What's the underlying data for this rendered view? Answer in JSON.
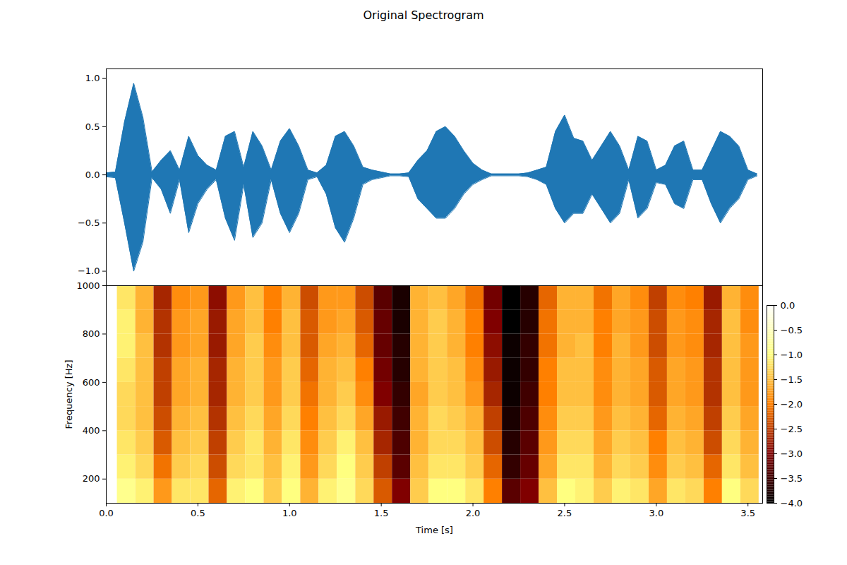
{
  "chart_data": [
    {
      "type": "area",
      "title": "Original Spectrogram",
      "color": "#1f77b4",
      "tick_labels": "y",
      "xlim": [
        0,
        3.58
      ],
      "ylim": [
        -1.15,
        1.1
      ],
      "yticks": [
        {
          "value": -1,
          "label": "−1.0"
        },
        {
          "value": -0.5,
          "label": "−0.5"
        },
        {
          "value": 0,
          "label": "0.0"
        },
        0.5,
        {
          "value": 1,
          "label": "1.0"
        }
      ],
      "x": [
        0.0,
        0.05,
        0.1,
        0.15,
        0.2,
        0.25,
        0.3,
        0.35,
        0.4,
        0.45,
        0.5,
        0.55,
        0.6,
        0.65,
        0.7,
        0.75,
        0.8,
        0.85,
        0.9,
        0.95,
        1.0,
        1.05,
        1.1,
        1.15,
        1.2,
        1.25,
        1.3,
        1.35,
        1.4,
        1.45,
        1.5,
        1.55,
        1.6,
        1.65,
        1.7,
        1.75,
        1.8,
        1.85,
        1.9,
        1.95,
        2.0,
        2.05,
        2.1,
        2.15,
        2.2,
        2.25,
        2.3,
        2.35,
        2.4,
        2.45,
        2.5,
        2.55,
        2.6,
        2.65,
        2.7,
        2.75,
        2.8,
        2.85,
        2.9,
        2.95,
        3.0,
        3.05,
        3.1,
        3.15,
        3.2,
        3.25,
        3.3,
        3.35,
        3.4,
        3.45,
        3.5,
        3.55
      ],
      "upper": [
        0.02,
        0.03,
        0.55,
        0.95,
        0.6,
        0.03,
        0.15,
        0.25,
        0.05,
        0.4,
        0.2,
        0.1,
        0.05,
        0.4,
        0.45,
        0.08,
        0.45,
        0.3,
        0.05,
        0.35,
        0.48,
        0.3,
        0.05,
        0.02,
        0.1,
        0.4,
        0.45,
        0.3,
        0.08,
        0.05,
        0.03,
        0.01,
        0.01,
        0.02,
        0.15,
        0.25,
        0.45,
        0.5,
        0.4,
        0.25,
        0.12,
        0.05,
        0.01,
        0.01,
        0.01,
        0.01,
        0.02,
        0.05,
        0.08,
        0.45,
        0.62,
        0.38,
        0.35,
        0.15,
        0.3,
        0.45,
        0.3,
        0.05,
        0.4,
        0.35,
        0.05,
        0.1,
        0.3,
        0.35,
        0.05,
        0.05,
        0.25,
        0.45,
        0.4,
        0.3,
        0.05,
        0.01
      ],
      "lower": [
        -0.02,
        -0.03,
        -0.5,
        -1.0,
        -0.7,
        -0.03,
        -0.15,
        -0.4,
        -0.05,
        -0.6,
        -0.3,
        -0.15,
        -0.05,
        -0.45,
        -0.68,
        -0.1,
        -0.65,
        -0.5,
        -0.05,
        -0.4,
        -0.6,
        -0.4,
        -0.05,
        -0.02,
        -0.2,
        -0.55,
        -0.7,
        -0.45,
        -0.1,
        -0.05,
        -0.03,
        -0.01,
        -0.01,
        -0.02,
        -0.25,
        -0.35,
        -0.45,
        -0.45,
        -0.35,
        -0.2,
        -0.1,
        -0.05,
        -0.01,
        -0.01,
        -0.01,
        -0.01,
        -0.02,
        -0.05,
        -0.1,
        -0.35,
        -0.5,
        -0.4,
        -0.4,
        -0.2,
        -0.35,
        -0.5,
        -0.4,
        -0.05,
        -0.45,
        -0.35,
        -0.08,
        -0.1,
        -0.3,
        -0.35,
        -0.05,
        -0.05,
        -0.3,
        -0.5,
        -0.35,
        -0.25,
        -0.05,
        -0.01
      ]
    },
    {
      "type": "heatmap",
      "x_label": "Time [s]",
      "y_label": "Frequency [Hz]",
      "xlim": [
        0,
        3.58
      ],
      "ylim": [
        100,
        1000
      ],
      "xticks": [
        {
          "value": 0,
          "label": "0.0"
        },
        0.5,
        {
          "value": 1,
          "label": "1.0"
        },
        1.5,
        {
          "value": 2,
          "label": "2.0"
        },
        2.5,
        {
          "value": 3,
          "label": "3.0"
        },
        3.5
      ],
      "yticks": [
        200,
        400,
        600,
        800,
        1000
      ],
      "time_bins": [
        0.06,
        0.16,
        0.26,
        0.36,
        0.46,
        0.56,
        0.66,
        0.76,
        0.86,
        0.96,
        1.06,
        1.16,
        1.26,
        1.36,
        1.46,
        1.56,
        1.66,
        1.76,
        1.86,
        1.96,
        2.06,
        2.16,
        2.26,
        2.36,
        2.46,
        2.56,
        2.66,
        2.76,
        2.86,
        2.96,
        3.06,
        3.16,
        3.26,
        3.36,
        3.46,
        3.56
      ],
      "frequency_bins": [
        100,
        200,
        300,
        400,
        500,
        600,
        700,
        800,
        900,
        1000
      ],
      "cells": [
        [
          -0.9,
          -1.1,
          -1.8,
          -1.2,
          -1.2,
          -2.2,
          -1.1,
          -1.0,
          -1.4,
          -1.0,
          -1.6,
          -1.1,
          -0.9,
          -1.3,
          -2.3,
          -3.0,
          -1.4,
          -1.0,
          -1.0,
          -1.2,
          -2.0,
          -3.3,
          -3.0,
          -1.5,
          -1.0,
          -1.1,
          -1.4,
          -1.1,
          -1.2,
          -1.7,
          -1.2,
          -1.3,
          -2.0,
          -1.0,
          -1.3
        ],
        [
          -1.1,
          -1.3,
          -2.1,
          -1.4,
          -1.3,
          -2.4,
          -1.3,
          -1.2,
          -1.5,
          -1.1,
          -1.8,
          -1.3,
          -1.0,
          -1.4,
          -2.5,
          -3.3,
          -1.5,
          -1.2,
          -1.2,
          -1.4,
          -2.2,
          -3.6,
          -3.2,
          -1.7,
          -1.2,
          -1.2,
          -1.6,
          -1.3,
          -1.4,
          -1.9,
          -1.4,
          -1.5,
          -2.2,
          -1.2,
          -1.5
        ],
        [
          -1.2,
          -1.4,
          -2.3,
          -1.5,
          -1.4,
          -2.5,
          -1.4,
          -1.2,
          -1.6,
          -1.2,
          -1.9,
          -1.4,
          -1.1,
          -1.5,
          -2.7,
          -3.4,
          -1.6,
          -1.3,
          -1.3,
          -1.5,
          -2.4,
          -3.7,
          -3.3,
          -1.8,
          -1.3,
          -1.3,
          -1.7,
          -1.4,
          -1.5,
          -2.0,
          -1.5,
          -1.6,
          -2.4,
          -1.3,
          -1.6
        ],
        [
          -1.3,
          -1.5,
          -2.4,
          -1.6,
          -1.5,
          -2.6,
          -1.5,
          -1.3,
          -1.7,
          -1.3,
          -2.0,
          -1.5,
          -1.3,
          -1.7,
          -2.8,
          -3.5,
          -1.6,
          -1.3,
          -1.4,
          -1.6,
          -2.5,
          -3.8,
          -3.4,
          -1.9,
          -1.4,
          -1.4,
          -1.8,
          -1.5,
          -1.6,
          -2.2,
          -1.6,
          -1.7,
          -2.5,
          -1.4,
          -1.7
        ],
        [
          -1.3,
          -1.5,
          -2.5,
          -1.7,
          -1.6,
          -2.7,
          -1.6,
          -1.4,
          -1.8,
          -1.4,
          -2.1,
          -1.6,
          -1.4,
          -1.9,
          -3.0,
          -3.6,
          -1.7,
          -1.4,
          -1.5,
          -1.8,
          -2.7,
          -3.9,
          -3.5,
          -2.0,
          -1.5,
          -1.5,
          -1.9,
          -1.6,
          -1.7,
          -2.3,
          -1.7,
          -1.8,
          -2.6,
          -1.5,
          -1.8
        ],
        [
          -1.2,
          -1.5,
          -2.5,
          -1.7,
          -1.6,
          -2.7,
          -1.6,
          -1.4,
          -1.8,
          -1.4,
          -2.2,
          -1.6,
          -1.5,
          -2.0,
          -3.1,
          -3.7,
          -1.6,
          -1.4,
          -1.5,
          -1.9,
          -2.8,
          -3.9,
          -3.6,
          -2.0,
          -1.5,
          -1.5,
          -1.9,
          -1.6,
          -1.7,
          -2.3,
          -1.7,
          -1.8,
          -2.6,
          -1.5,
          -1.8
        ],
        [
          -1.1,
          -1.5,
          -2.6,
          -1.8,
          -1.7,
          -2.8,
          -1.7,
          -1.4,
          -1.9,
          -1.5,
          -2.3,
          -1.7,
          -1.6,
          -2.2,
          -3.2,
          -3.7,
          -1.6,
          -1.4,
          -1.6,
          -2.0,
          -2.9,
          -3.9,
          -3.6,
          -2.1,
          -1.6,
          -1.5,
          -2.0,
          -1.6,
          -1.8,
          -2.4,
          -1.8,
          -1.9,
          -2.7,
          -1.5,
          -1.8
        ],
        [
          -1.1,
          -1.6,
          -2.6,
          -1.8,
          -1.7,
          -2.8,
          -1.7,
          -1.5,
          -2.0,
          -1.5,
          -2.3,
          -1.8,
          -1.7,
          -2.3,
          -3.2,
          -3.8,
          -1.6,
          -1.4,
          -1.6,
          -2.0,
          -3.0,
          -4.0,
          -3.7,
          -2.1,
          -1.6,
          -1.6,
          -2.0,
          -1.7,
          -1.8,
          -2.4,
          -1.8,
          -1.9,
          -2.7,
          -1.5,
          -1.9
        ],
        [
          -1.2,
          -1.6,
          -2.7,
          -1.9,
          -1.8,
          -2.9,
          -1.8,
          -1.5,
          -2.0,
          -1.6,
          -2.4,
          -1.8,
          -1.8,
          -2.4,
          -3.3,
          -3.8,
          -1.6,
          -1.5,
          -1.7,
          -2.1,
          -3.1,
          -4.0,
          -3.7,
          -2.2,
          -1.6,
          -1.6,
          -2.1,
          -1.7,
          -1.9,
          -2.5,
          -1.9,
          -2.0,
          -2.8,
          -1.6,
          -1.9
        ]
      ],
      "colorbar": {
        "range": [
          -4,
          0
        ],
        "ticks": [
          {
            "value": 0,
            "label": "0.0"
          },
          {
            "value": -0.5,
            "label": "−0.5"
          },
          {
            "value": -1,
            "label": "−1.0"
          },
          {
            "value": -1.5,
            "label": "−1.5"
          },
          {
            "value": -2,
            "label": "−2.0"
          },
          {
            "value": -2.5,
            "label": "−2.5"
          },
          {
            "value": -3,
            "label": "−3.0"
          },
          {
            "value": -3.5,
            "label": "−3.5"
          },
          {
            "value": -4,
            "label": "−4.0"
          }
        ]
      }
    }
  ]
}
